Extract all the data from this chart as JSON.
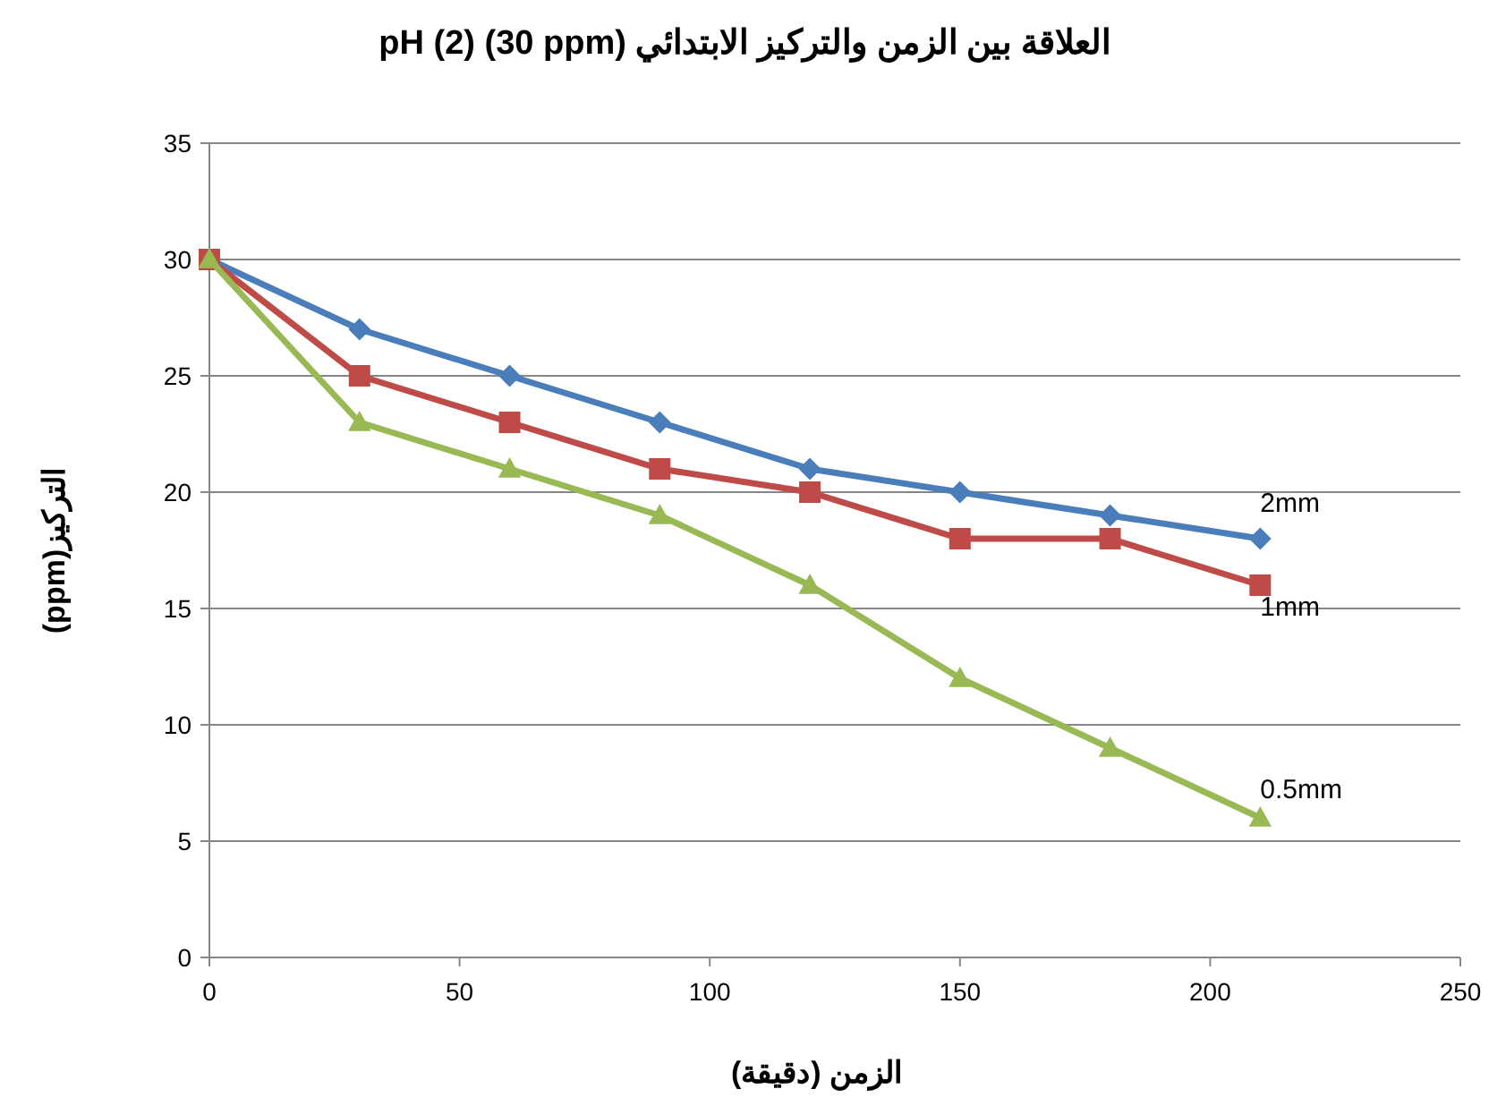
{
  "chart_data": {
    "type": "line",
    "title": "العلاقة بين الزمن والتركيز الابتدائي pH (2) (30 ppm)",
    "xlabel": "الزمن (دقيقة)",
    "ylabel": "التركيز(ppm)",
    "x": [
      0,
      30,
      60,
      90,
      120,
      150,
      180,
      210
    ],
    "series": [
      {
        "name": "2mm",
        "color": "#4a7ebb",
        "marker": "diamond",
        "values": [
          30,
          27,
          25,
          23,
          21,
          20,
          19,
          18
        ]
      },
      {
        "name": "1mm",
        "color": "#be4b48",
        "marker": "square",
        "values": [
          30,
          25,
          23,
          21,
          20,
          18,
          18,
          16
        ]
      },
      {
        "name": "0.5mm",
        "color": "#98b954",
        "marker": "triangle",
        "values": [
          30,
          23,
          21,
          19,
          16,
          12,
          9,
          6
        ]
      }
    ],
    "xlim": [
      0,
      250
    ],
    "xticks": [
      0,
      50,
      100,
      150,
      200,
      250
    ],
    "ylim": [
      0,
      35
    ],
    "yticks": [
      0,
      5,
      10,
      15,
      20,
      25,
      30,
      35
    ],
    "grid": "y",
    "legend": false,
    "line_style": "solid"
  }
}
